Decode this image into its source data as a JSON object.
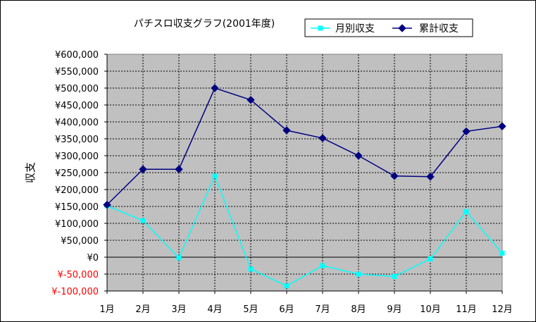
{
  "chart_data": {
    "type": "line",
    "title": "パチスロ収支グラフ(2001年度)",
    "ylabel": "収支",
    "xlabel": "",
    "categories": [
      "1月",
      "2月",
      "3月",
      "4月",
      "5月",
      "6月",
      "7月",
      "8月",
      "9月",
      "10月",
      "11月",
      "12月"
    ],
    "ylim": [
      -100000,
      600000
    ],
    "ytick_step": 50000,
    "yticks": [
      "¥600,000",
      "¥550,000",
      "¥500,000",
      "¥450,000",
      "¥400,000",
      "¥350,000",
      "¥300,000",
      "¥250,000",
      "¥200,000",
      "¥150,000",
      "¥100,000",
      "¥50,000",
      "¥0",
      "¥-50,000",
      "¥-100,000"
    ],
    "grid": true,
    "legend_position": "top-right",
    "series": [
      {
        "name": "月別収支",
        "color": "#00ffff",
        "marker": "square",
        "values": [
          152000,
          108000,
          -2000,
          240000,
          -35000,
          -85000,
          -25000,
          -50000,
          -57000,
          -5000,
          135000,
          12000
        ]
      },
      {
        "name": "累計収支",
        "color": "#000080",
        "marker": "diamond",
        "values": [
          155000,
          260000,
          260000,
          500000,
          465000,
          375000,
          352000,
          300000,
          240000,
          238000,
          372000,
          387000
        ]
      }
    ],
    "colors": {
      "plot_bg": "#c0c0c0",
      "negative_tick": "#ff0000"
    }
  }
}
